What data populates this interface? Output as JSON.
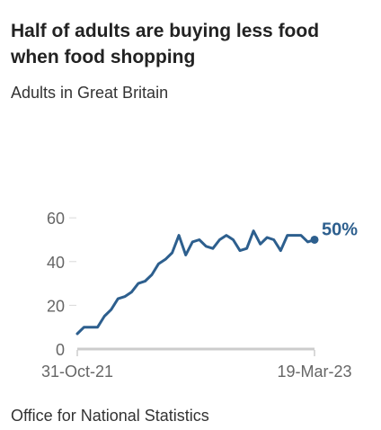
{
  "title": "Half of adults are buying less food when food shopping",
  "subtitle": "Adults in Great Britain",
  "source": "Office for National Statistics",
  "colors": {
    "line": "#2d5f8e",
    "axis": "#cccccc",
    "tick_text": "#666666",
    "grid": "#d9d9d9"
  },
  "chart_data": {
    "type": "line",
    "title": "Half of adults are buying less food when food shopping",
    "subtitle": "Adults in Great Britain",
    "xlabel": "",
    "ylabel": "",
    "x_tick_labels": [
      "31-Oct-21",
      "19-Mar-23"
    ],
    "y_ticks": [
      0,
      20,
      40,
      60
    ],
    "ylim": [
      0,
      65
    ],
    "grid": false,
    "legend": "none",
    "end_label": "50%",
    "series": [
      {
        "values": [
          7,
          10,
          10,
          10,
          15,
          18,
          23,
          24,
          26,
          30,
          31,
          34,
          39,
          41,
          44,
          52,
          43,
          49,
          50,
          47,
          46,
          50,
          52,
          50,
          45,
          46,
          54,
          48,
          51,
          50,
          45,
          52,
          52,
          52,
          49,
          50
        ]
      }
    ]
  }
}
